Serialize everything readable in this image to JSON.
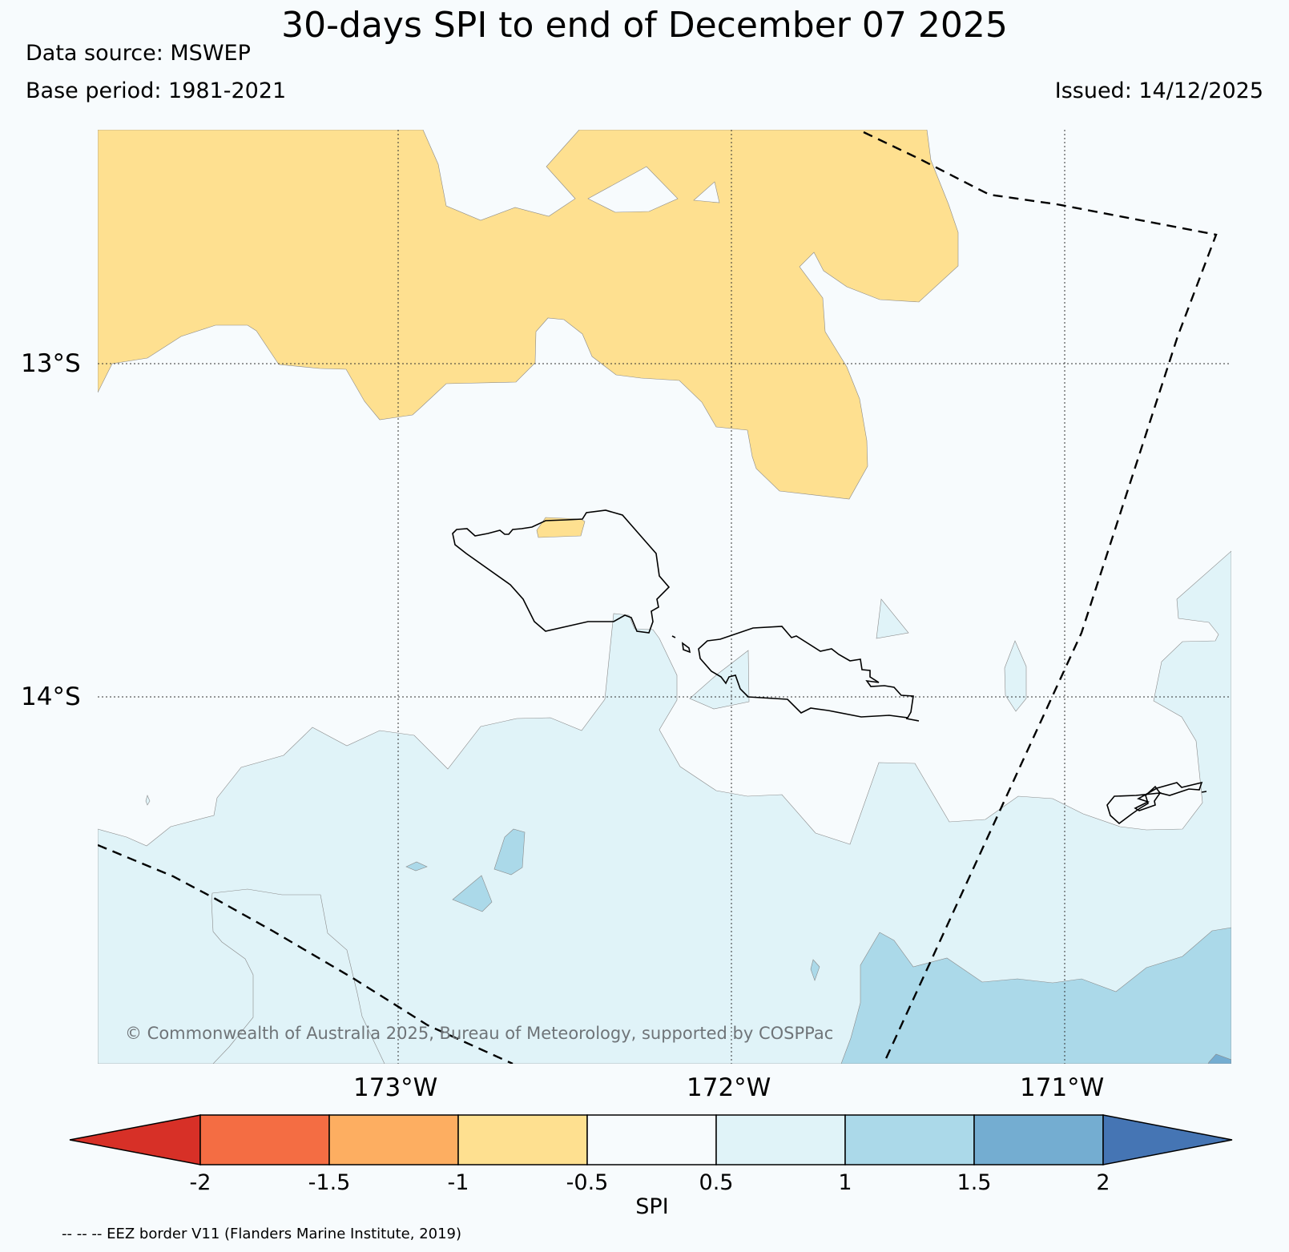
{
  "title": "30-days SPI to end of December 07 2025",
  "data_source": "Data source: MSWEP",
  "base_period": "Base period: 1981-2021",
  "issued": "Issued: 14/12/2025",
  "map": {
    "latitude_labels": [
      "13°S",
      "14°S"
    ],
    "longitude_labels": [
      "173°W",
      "172°W",
      "171°W"
    ],
    "copyright": "© Commonwealth of Australia 2025, Bureau of Meteorology, supported by COSPPac"
  },
  "colorbar": {
    "label": "SPI",
    "ticks": [
      "-2",
      "-1.5",
      "-1",
      "-0.5",
      "0.5",
      "1",
      "1.5",
      "2"
    ],
    "colors": {
      "below_-2": "#d73027",
      "-2_-1.5": "#f46d43",
      "-1.5_-1": "#fdae61",
      "-1_-0.5": "#fee090",
      "-0.5_0.5": "#f7fbfd",
      "0.5_1": "#e0f3f8",
      "1_1.5": "#abd9e9",
      "1.5_2": "#74add1",
      "above_2": "#4575b4"
    }
  },
  "footnote": "-- -- -- EEZ border V11 (Flanders Marine Institute, 2019)"
}
